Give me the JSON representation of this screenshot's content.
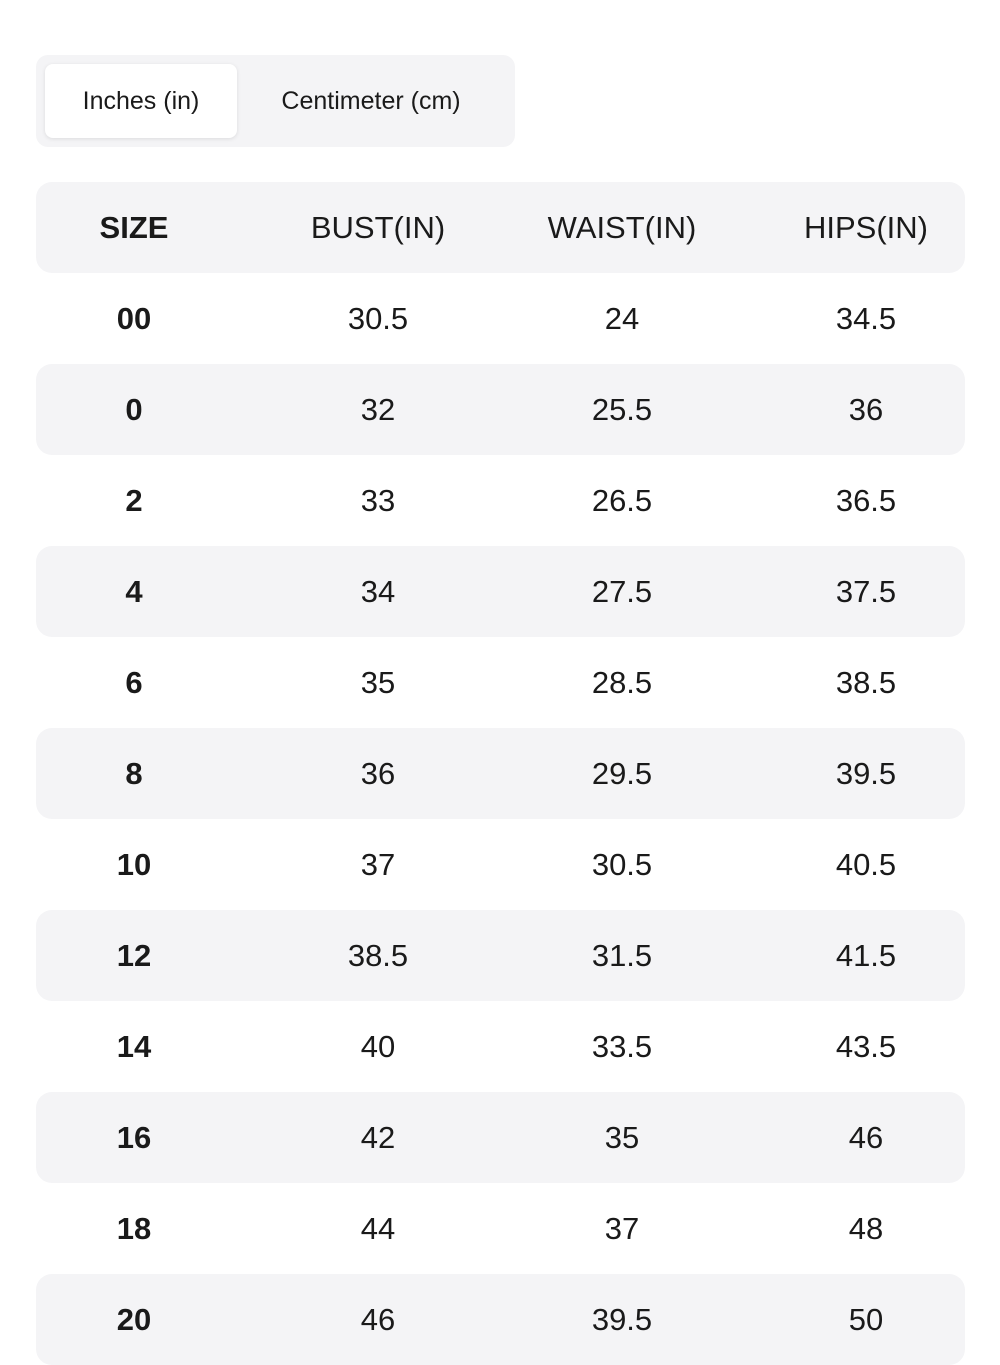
{
  "unit_toggle": {
    "options": [
      {
        "label": "Inches (in)",
        "selected": true
      },
      {
        "label": "Centimeter (cm)",
        "selected": false
      }
    ]
  },
  "size_table": {
    "columns": [
      "SIZE",
      "BUST(IN)",
      "WAIST(IN)",
      "HIPS(IN)"
    ],
    "rows": [
      [
        "00",
        "30.5",
        "24",
        "34.5"
      ],
      [
        "0",
        "32",
        "25.5",
        "36"
      ],
      [
        "2",
        "33",
        "26.5",
        "36.5"
      ],
      [
        "4",
        "34",
        "27.5",
        "37.5"
      ],
      [
        "6",
        "35",
        "28.5",
        "38.5"
      ],
      [
        "8",
        "36",
        "29.5",
        "39.5"
      ],
      [
        "10",
        "37",
        "30.5",
        "40.5"
      ],
      [
        "12",
        "38.5",
        "31.5",
        "41.5"
      ],
      [
        "14",
        "40",
        "33.5",
        "43.5"
      ],
      [
        "16",
        "42",
        "35",
        "46"
      ],
      [
        "18",
        "44",
        "37",
        "48"
      ],
      [
        "20",
        "46",
        "39.5",
        "50"
      ]
    ]
  },
  "colors": {
    "row_shade": "#f4f4f6",
    "toggle_bg": "#f4f4f6",
    "text": "#1a1a1a",
    "active_tab_bg": "#ffffff"
  }
}
